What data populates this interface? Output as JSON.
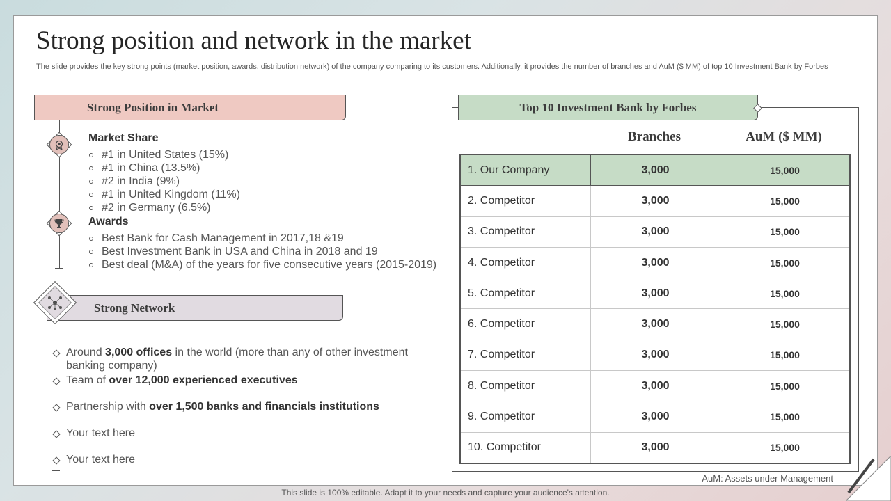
{
  "title": "Strong position and network in the market",
  "subtitle": "The slide provides the key strong points (market position, awards, distribution network) of the company comparing to its customers. Additionally, it provides the number of branches and AuM ($ MM) of top 10 Investment Bank by Forbes",
  "position": {
    "header": "Strong Position in Market",
    "market_share": {
      "title": "Market Share",
      "items": [
        "#1 in United States (15%)",
        "#1 in China (13.5%)",
        "#2 in India (9%)",
        "#1 in United Kingdom (11%)",
        "#2 in Germany (6.5%)"
      ],
      "icon": "award-medal-icon"
    },
    "awards": {
      "title": "Awards",
      "items": [
        "Best Bank for Cash Management in 2017,18 &19",
        "Best Investment  Bank in USA and China in 2018 and 19",
        "Best deal (M&A) of the years for five consecutive years (2015-2019)"
      ],
      "icon": "trophy-icon"
    }
  },
  "network": {
    "header": "Strong Network",
    "icon": "network-icon",
    "items": [
      {
        "pre": "Around ",
        "bold": "3,000 offices",
        "post": " in the world (more than any of other investment banking company)"
      },
      {
        "pre": "Team of ",
        "bold": "over 12,000 experienced executives",
        "post": ""
      },
      {
        "pre": "Partnership with ",
        "bold": "over 1,500 banks and financials institutions",
        "post": ""
      },
      {
        "pre": "Your text here",
        "bold": "",
        "post": ""
      },
      {
        "pre": "Your text here",
        "bold": "",
        "post": ""
      }
    ]
  },
  "table": {
    "header": "Top 10 Investment Bank by Forbes",
    "col_branches": "Branches",
    "col_aum": "AuM ($ MM)",
    "rows": [
      {
        "name": "1. Our Company",
        "branches": "3,000",
        "aum": "15,000"
      },
      {
        "name": "2. Competitor",
        "branches": "3,000",
        "aum": "15,000"
      },
      {
        "name": "3. Competitor",
        "branches": "3,000",
        "aum": "15,000"
      },
      {
        "name": "4. Competitor",
        "branches": "3,000",
        "aum": "15,000"
      },
      {
        "name": "5. Competitor",
        "branches": "3,000",
        "aum": "15,000"
      },
      {
        "name": "6. Competitor",
        "branches": "3,000",
        "aum": "15,000"
      },
      {
        "name": "7. Competitor",
        "branches": "3,000",
        "aum": "15,000"
      },
      {
        "name": "8. Competitor",
        "branches": "3,000",
        "aum": "15,000"
      },
      {
        "name": "9. Competitor",
        "branches": "3,000",
        "aum": "15,000"
      },
      {
        "name": "10. Competitor",
        "branches": "3,000",
        "aum": "15,000"
      }
    ],
    "note": "AuM: Assets under Management"
  },
  "footer": "This slide is 100% editable. Adapt it to your needs and capture your audience's attention.",
  "colors": {
    "position_header": "#efc9c2",
    "network_header": "#e1dbe1",
    "table_header": "#c6dcc6",
    "highlight_row": "#c6dcc6"
  }
}
